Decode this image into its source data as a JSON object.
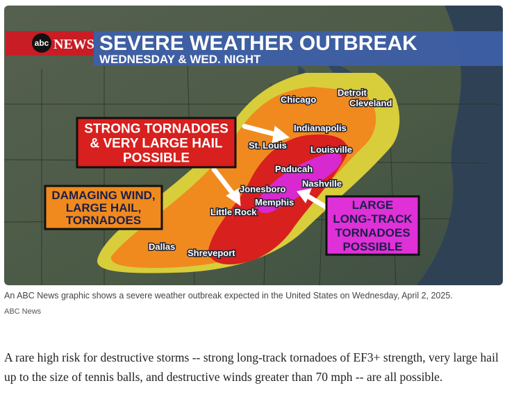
{
  "graphic": {
    "logo": "abc",
    "network": "NEWS",
    "title": "SEVERE WEATHER OUTBREAK",
    "subtitle": "WEDNESDAY & WED. NIGHT",
    "callouts": [
      {
        "lines": [
          "STRONG TORNADOES",
          "& VERY LARGE HAIL",
          "POSSIBLE"
        ]
      },
      {
        "lines": [
          "DAMAGING WIND,",
          "LARGE HAIL,",
          "TORNADOES"
        ]
      },
      {
        "lines": [
          "LARGE",
          "LONG-TRACK",
          "TORNADOES",
          "POSSIBLE"
        ]
      }
    ],
    "cities": [
      "Chicago",
      "Detroit",
      "Cleveland",
      "Indianapolis",
      "St. Louis",
      "Louisville",
      "Paducah",
      "Nashville",
      "Jonesboro",
      "Memphis",
      "Little Rock",
      "Dallas",
      "Shreveport"
    ]
  },
  "caption": "An ABC News graphic shows a severe weather outbreak expected in the United States on Wednesday, April 2, 2025.",
  "credit": "ABC News",
  "paragraph": "A rare high risk for destructive storms -- strong long-track tornadoes of EF3+ strength, very large hail up to the size of tennis balls, and destructive winds greater than 70 mph -- are all possible."
}
